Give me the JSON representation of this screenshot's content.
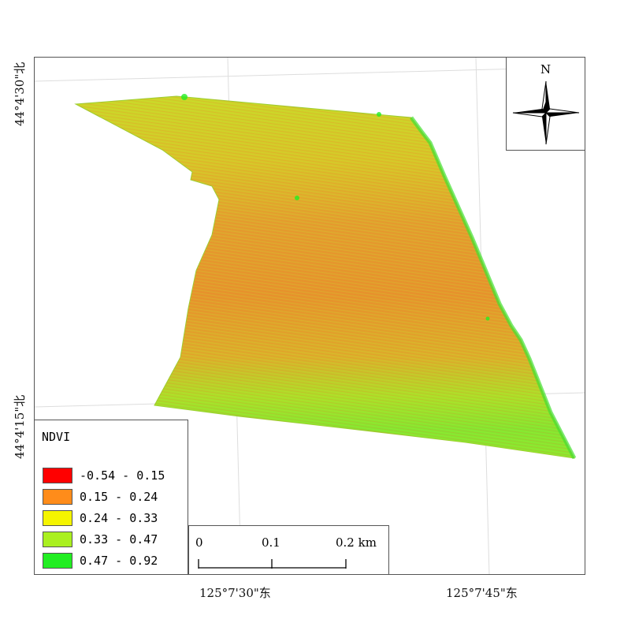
{
  "lat_labels": [
    "44°4'30\"北",
    "44°4'15\"北"
  ],
  "lon_labels": [
    "125°7'30\"东",
    "125°7'45\"东"
  ],
  "north_arrow": {
    "label": "N",
    "icon": "north-arrow-icon"
  },
  "legend": {
    "title": "NDVI",
    "items": [
      {
        "label": "-0.54 - 0.15",
        "color": "#ff0000"
      },
      {
        "label": "0.15 - 0.24",
        "color": "#ff8c1a"
      },
      {
        "label": "0.24 - 0.33",
        "color": "#f5f500"
      },
      {
        "label": "0.33 - 0.47",
        "color": "#aaf020"
      },
      {
        "label": "0.47 - 0.92",
        "color": "#22ee22"
      }
    ]
  },
  "scale_bar": {
    "ticks": [
      "0",
      "0.1",
      "0.2 km"
    ]
  }
}
